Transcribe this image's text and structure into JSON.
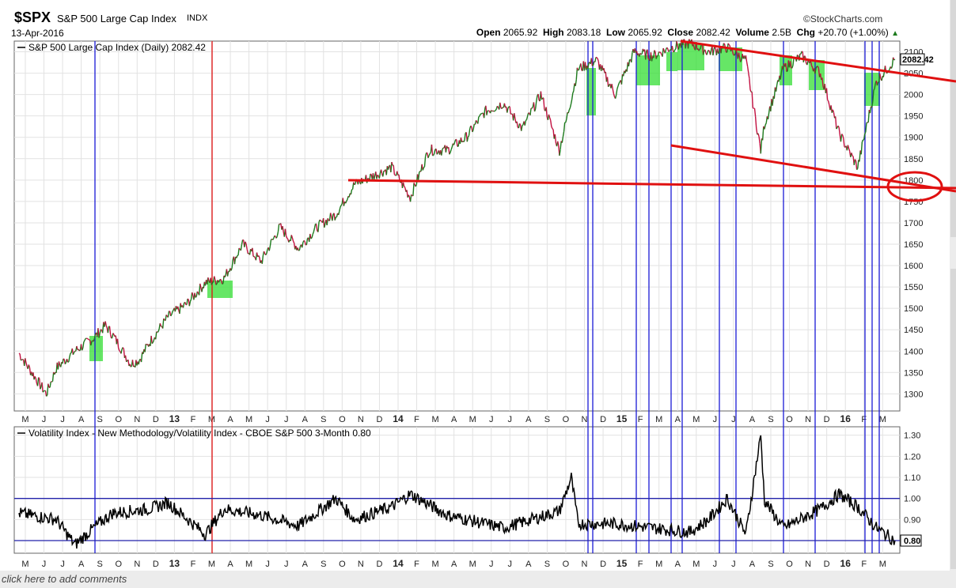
{
  "header": {
    "symbol": "$SPX",
    "name": "S&P 500 Large Cap Index",
    "exchange": "INDX",
    "date": "13-Apr-2016",
    "brand": "©StockCharts.com",
    "open_label": "Open",
    "open": "2065.92",
    "high_label": "High",
    "high": "2083.18",
    "low_label": "Low",
    "low": "2065.92",
    "close_label": "Close",
    "close": "2082.42",
    "volume_label": "Volume",
    "volume": "2.5B",
    "chg_label": "Chg",
    "chg": "+20.70 (+1.00%)",
    "chg_arrow": "▲"
  },
  "footer": {
    "comment_link": "click here to add comments"
  },
  "colors": {
    "up": "#1c7a1c",
    "down": "#c21040",
    "annot_red": "#e01010",
    "annot_blue": "#1a1ad6",
    "highlight": "#33dd33"
  },
  "chart_data": [
    {
      "type": "line",
      "panel": "price",
      "legend": "S&P 500 Large Cap Index (Daily) 2082.42",
      "last_value": "2082.42",
      "ylim": [
        1260,
        2125
      ],
      "yticks": [
        1300,
        1350,
        1400,
        1450,
        1500,
        1550,
        1600,
        1650,
        1700,
        1750,
        1800,
        1850,
        1900,
        1950,
        2000,
        2050,
        2100
      ],
      "x_month_labels": [
        "M",
        "J",
        "J",
        "A",
        "S",
        "O",
        "N",
        "D",
        "13",
        "F",
        "M",
        "A",
        "M",
        "J",
        "J",
        "A",
        "S",
        "O",
        "N",
        "D",
        "14",
        "F",
        "M",
        "A",
        "M",
        "J",
        "J",
        "A",
        "S",
        "O",
        "N",
        "D",
        "15",
        "F",
        "M",
        "A",
        "M",
        "J",
        "J",
        "A",
        "S",
        "O",
        "N",
        "D",
        "16",
        "F",
        "M",
        "A",
        "M"
      ],
      "x_start": "2012-05",
      "points_monthly": [
        [
          "2012-05",
          1395
        ],
        [
          "2012-06",
          1330
        ],
        [
          "2012-06-15",
          1300
        ],
        [
          "2012-07",
          1360
        ],
        [
          "2012-08",
          1400
        ],
        [
          "2012-09",
          1430
        ],
        [
          "2012-09-20",
          1460
        ],
        [
          "2012-10",
          1440
        ],
        [
          "2012-11",
          1370
        ],
        [
          "2012-11-15",
          1380
        ],
        [
          "2012-12",
          1420
        ],
        [
          "2013-01",
          1480
        ],
        [
          "2013-02",
          1510
        ],
        [
          "2013-03",
          1560
        ],
        [
          "2013-04",
          1570
        ],
        [
          "2013-05",
          1650
        ],
        [
          "2013-06",
          1610
        ],
        [
          "2013-07",
          1690
        ],
        [
          "2013-08",
          1640
        ],
        [
          "2013-09",
          1690
        ],
        [
          "2013-10",
          1720
        ],
        [
          "2013-11",
          1790
        ],
        [
          "2013-12",
          1810
        ],
        [
          "2014-01",
          1830
        ],
        [
          "2014-02",
          1760
        ],
        [
          "2014-03",
          1870
        ],
        [
          "2014-04",
          1870
        ],
        [
          "2014-05",
          1900
        ],
        [
          "2014-06",
          1960
        ],
        [
          "2014-07",
          1980
        ],
        [
          "2014-08",
          1920
        ],
        [
          "2014-09",
          2000
        ],
        [
          "2014-10",
          1870
        ],
        [
          "2014-11",
          2060
        ],
        [
          "2014-12",
          2080
        ],
        [
          "2015-01",
          2000
        ],
        [
          "2015-02",
          2100
        ],
        [
          "2015-03",
          2090
        ],
        [
          "2015-04",
          2110
        ],
        [
          "2015-05",
          2120
        ],
        [
          "2015-06",
          2100
        ],
        [
          "2015-07",
          2110
        ],
        [
          "2015-08",
          2080
        ],
        [
          "2015-08-25",
          1870
        ],
        [
          "2015-09",
          1930
        ],
        [
          "2015-10",
          2060
        ],
        [
          "2015-11",
          2090
        ],
        [
          "2015-12",
          2050
        ],
        [
          "2016-01",
          1910
        ],
        [
          "2016-02",
          1830
        ],
        [
          "2016-03",
          2030
        ],
        [
          "2016-04",
          2082.42
        ]
      ]
    },
    {
      "type": "line",
      "panel": "ratio",
      "legend": "Volatility Index - New Methodology/Volatility Index - CBOE S&P 500 3-Month 0.80",
      "last_value": "0.80",
      "ylim": [
        0.74,
        1.34
      ],
      "yticks": [
        0.9,
        1.0,
        1.1,
        1.2,
        1.3
      ],
      "ytick_labels": [
        "0.90",
        "1.00",
        "1.10",
        "1.20",
        "1.30"
      ],
      "hlines": [
        1.0,
        0.8
      ],
      "points_monthly": [
        [
          "2012-05",
          0.93
        ],
        [
          "2012-07",
          0.9
        ],
        [
          "2012-08",
          0.78
        ],
        [
          "2012-09",
          0.86
        ],
        [
          "2012-10",
          0.93
        ],
        [
          "2012-12",
          0.95
        ],
        [
          "2013-01",
          0.98
        ],
        [
          "2013-03",
          0.83
        ],
        [
          "2013-04",
          0.95
        ],
        [
          "2013-06",
          0.92
        ],
        [
          "2013-08",
          0.87
        ],
        [
          "2013-10",
          1.0
        ],
        [
          "2013-11",
          0.9
        ],
        [
          "2014-01",
          0.96
        ],
        [
          "2014-02",
          1.02
        ],
        [
          "2014-04",
          0.92
        ],
        [
          "2014-07",
          0.86
        ],
        [
          "2014-10",
          0.94
        ],
        [
          "2014-10-20",
          1.1
        ],
        [
          "2014-11",
          0.88
        ],
        [
          "2015-01",
          0.88
        ],
        [
          "2015-03",
          0.86
        ],
        [
          "2015-05",
          0.84
        ],
        [
          "2015-06",
          0.9
        ],
        [
          "2015-07",
          1.0
        ],
        [
          "2015-08",
          0.83
        ],
        [
          "2015-08-25",
          1.3
        ],
        [
          "2015-09",
          0.99
        ],
        [
          "2015-10",
          0.86
        ],
        [
          "2015-12",
          0.95
        ],
        [
          "2016-01",
          1.02
        ],
        [
          "2016-02",
          0.96
        ],
        [
          "2016-03",
          0.86
        ],
        [
          "2016-04",
          0.8
        ]
      ]
    }
  ]
}
